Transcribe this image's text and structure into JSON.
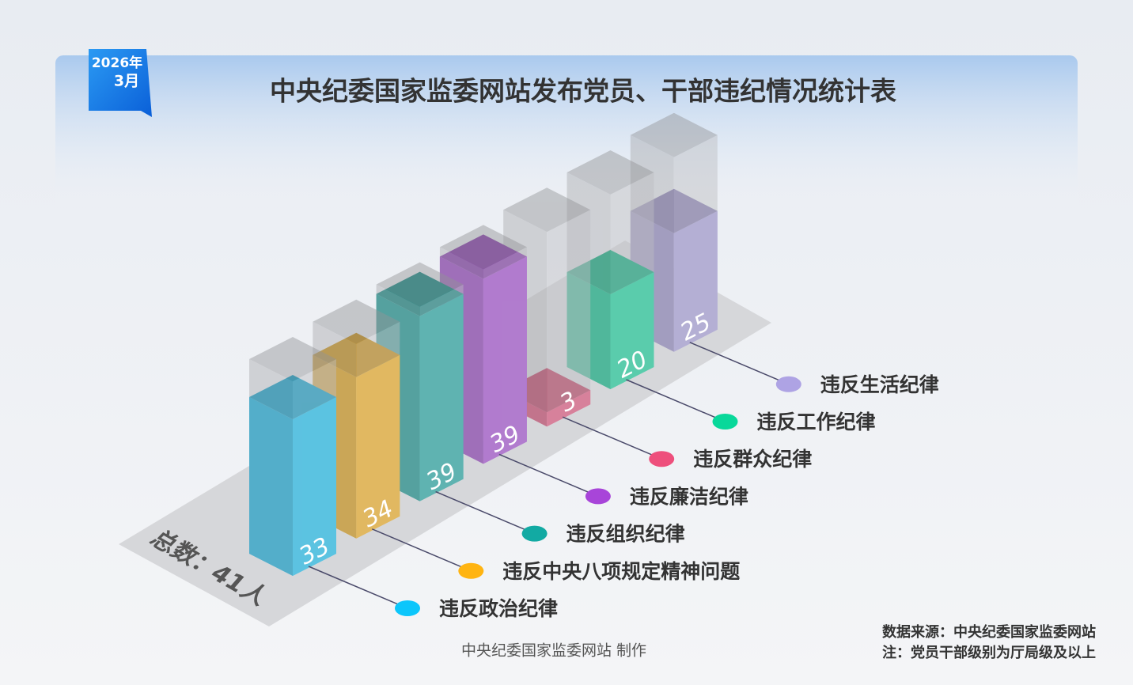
{
  "chart_data": {
    "type": "bar3d",
    "title": "中央纪委国家监委网站发布党员、干部违纪情况统计表",
    "badge": [
      "2026年",
      "3月"
    ],
    "categories": [
      "违反政治纪律",
      "违反中央八项规定精神问题",
      "违反组织纪律",
      "违反廉洁纪律",
      "违反群众纪律",
      "违反工作纪律",
      "违反生活纪律"
    ],
    "values": [
      33,
      34,
      39,
      39,
      3,
      20,
      25
    ],
    "colors": [
      "#0cc6fb",
      "#ffb411",
      "#12aaa3",
      "#a845d9",
      "#ee4f7c",
      "#08d89a",
      "#aea3e4"
    ],
    "total": {
      "value": 41,
      "label": "总数：41人"
    },
    "credit": "中央纪委国家监委网站 制作",
    "source": "数据来源：中央纪委国家监委网站",
    "note": "注：党员干部级别为厅局级及以上"
  }
}
